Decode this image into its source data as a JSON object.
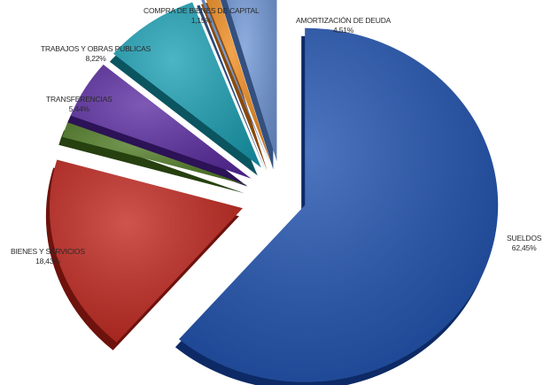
{
  "chart_data": {
    "type": "pie",
    "style": "3d-exploded",
    "legend": "none",
    "slices": [
      {
        "name": "SUELDOS",
        "value_label": "62,45%",
        "value": 62.45,
        "color": "#1c4fae",
        "side": "#0d2a66"
      },
      {
        "name": "BIENES Y SERVICIOS",
        "value_label": "18,43%",
        "value": 18.43,
        "color": "#c0241c",
        "side": "#6e120d"
      },
      {
        "name": "",
        "value_label": "",
        "value": 1.4,
        "color": "#4d7a22",
        "side": "#26400f"
      },
      {
        "name": "TRANSFERENCIAS",
        "value_label": "5,44%",
        "value": 5.44,
        "color": "#5a2aa0",
        "side": "#2c1256"
      },
      {
        "name": "TRABAJOS Y OBRAS PUBLICAS",
        "value_label": "8,22%",
        "value": 8.22,
        "color": "#1aa0b4",
        "side": "#0b5560"
      },
      {
        "name": "",
        "value_label": "",
        "value": 0.25,
        "color": "#5c8ad0",
        "side": "#2e4a78"
      },
      {
        "name": "COMPRA DE BIENES DE CAPITAL",
        "value_label": "1,15%",
        "value": 1.15,
        "color": "#ef8a1c",
        "side": "#8a4a0a"
      },
      {
        "name": "AMORTIZACIÓN DE DEUDA",
        "value_label": "4,51%",
        "value": 4.51,
        "color": "#6f96d6",
        "side": "#33507e"
      }
    ]
  }
}
